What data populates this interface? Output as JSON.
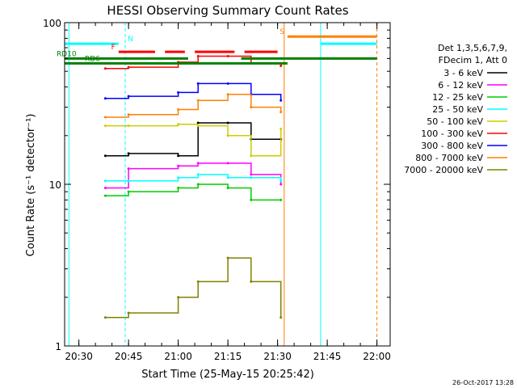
{
  "chart_data": {
    "type": "line",
    "title": "HESSI Observing Summary Count Rates",
    "xlabel": "Start Time (25-May-15 20:25:42)",
    "ylabel": "Count Rate (s⁻¹ detector⁻¹)",
    "y_scale": "log",
    "ylim": [
      1,
      100
    ],
    "xlim": [
      "20:25:42",
      "22:04:00"
    ],
    "x_tick_labels": [
      "20:30",
      "20:45",
      "21:00",
      "21:15",
      "21:30",
      "21:45",
      "22:00"
    ],
    "y_tick_labels": [
      "1",
      "10",
      "100"
    ],
    "legend_position": "right",
    "legend_header": [
      "Det 1,3,5,6,7,9,",
      "FDecim 1, Att 0"
    ],
    "series": [
      {
        "name": "3 - 6 keV",
        "color": "#000000",
        "x": [
          "20:38",
          "20:45",
          "21:00",
          "21:06",
          "21:15",
          "21:22",
          "21:31"
        ],
        "y": [
          15,
          15.5,
          15,
          24,
          24,
          19,
          19
        ]
      },
      {
        "name": "6 - 12 keV",
        "color": "#ff00ff",
        "x": [
          "20:38",
          "20:45",
          "21:00",
          "21:06",
          "21:15",
          "21:22",
          "21:31"
        ],
        "y": [
          9.5,
          12.5,
          13,
          13.5,
          13.5,
          11.5,
          10
        ]
      },
      {
        "name": "12 - 25 keV",
        "color": "#00cc00",
        "x": [
          "20:38",
          "20:45",
          "21:00",
          "21:06",
          "21:15",
          "21:22",
          "21:31"
        ],
        "y": [
          8.5,
          9,
          9.5,
          10,
          9.5,
          8,
          8
        ]
      },
      {
        "name": "25 - 50 keV",
        "color": "#00ffff",
        "x": [
          "20:38",
          "20:45",
          "21:00",
          "21:06",
          "21:15",
          "21:22",
          "21:31"
        ],
        "y": [
          10.5,
          10.5,
          11,
          11.5,
          11,
          11,
          10.5
        ]
      },
      {
        "name": "50 - 100 keV",
        "color": "#cccc00",
        "x": [
          "20:38",
          "20:45",
          "21:00",
          "21:06",
          "21:15",
          "21:22",
          "21:31"
        ],
        "y": [
          23,
          23,
          23.5,
          23,
          20,
          15,
          22
        ]
      },
      {
        "name": "100 - 300 keV",
        "color": "#ff0000",
        "x": [
          "20:38",
          "20:45",
          "21:00",
          "21:06",
          "21:15",
          "21:22",
          "21:31"
        ],
        "y": [
          52,
          53,
          57,
          62,
          62,
          56,
          54
        ]
      },
      {
        "name": "300 - 800 keV",
        "color": "#0000ff",
        "x": [
          "20:38",
          "20:45",
          "21:00",
          "21:06",
          "21:15",
          "21:22",
          "21:31"
        ],
        "y": [
          34,
          35,
          37,
          42,
          42,
          36,
          33
        ]
      },
      {
        "name": "800 - 7000 keV",
        "color": "#ff8000",
        "x": [
          "20:38",
          "20:45",
          "21:00",
          "21:06",
          "21:15",
          "21:22",
          "21:31"
        ],
        "y": [
          26,
          27,
          29,
          33,
          36,
          30,
          28
        ]
      },
      {
        "name": "7000 - 20000 keV",
        "color": "#808000",
        "x": [
          "20:38",
          "20:45",
          "21:00",
          "21:06",
          "21:15",
          "21:22",
          "21:31"
        ],
        "y": [
          1.5,
          1.6,
          2,
          2.5,
          3.5,
          2.5,
          1.5
        ]
      }
    ],
    "flag_bars": [
      {
        "label": "RD10",
        "color": "#008000",
        "y": 60,
        "segments": [
          [
            "20:25:42",
            "21:03"
          ],
          [
            "21:19",
            "22:00"
          ]
        ]
      },
      {
        "label": "RD6",
        "color": "#008000",
        "y": 56,
        "segments": [
          [
            "20:25:42",
            "21:33"
          ]
        ]
      },
      {
        "label": "N",
        "color": "#00ffff",
        "y": 74,
        "segments": [
          [
            "20:25:42",
            "20:42"
          ],
          [
            "21:43",
            "22:00"
          ]
        ]
      },
      {
        "label": "F",
        "color": "#ff0000",
        "y": 66,
        "segments": [
          [
            "20:42",
            "20:53"
          ],
          [
            "20:56",
            "21:02"
          ],
          [
            "21:05",
            "21:17"
          ],
          [
            "21:20",
            "21:30"
          ]
        ]
      },
      {
        "label": "S",
        "color": "#ff8000",
        "y": 82,
        "segments": [
          [
            "21:33",
            "22:00"
          ]
        ]
      }
    ],
    "vertical_markers": [
      {
        "x": "20:27",
        "color": "#00ffff",
        "style": "solid"
      },
      {
        "x": "20:44",
        "color": "#00ffff",
        "style": "dashed"
      },
      {
        "x": "21:32",
        "color": "#ff8000",
        "style": "solid"
      },
      {
        "x": "21:43",
        "color": "#00ffff",
        "style": "solid"
      },
      {
        "x": "22:00",
        "color": "#ff8000",
        "style": "dashed"
      }
    ],
    "footer_timestamp": "26-Oct-2017 13:28"
  }
}
